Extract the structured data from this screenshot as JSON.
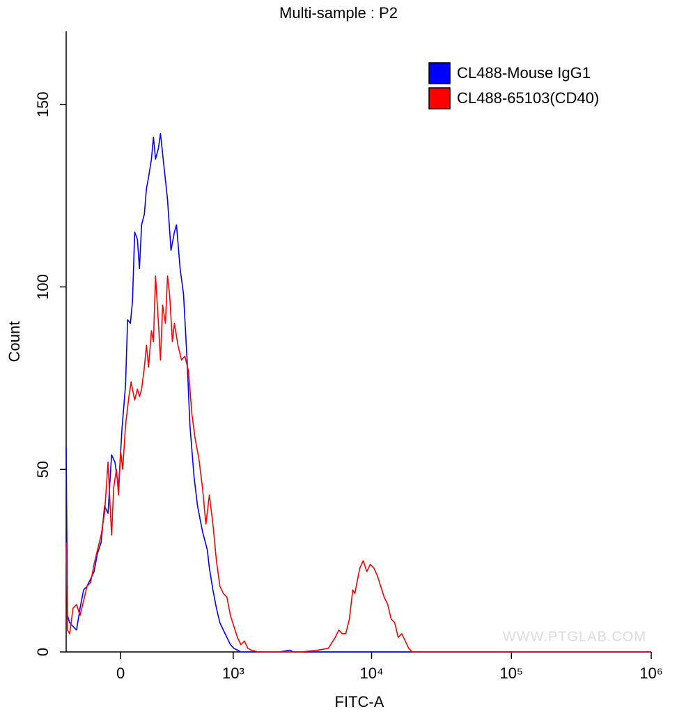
{
  "chart_data": {
    "type": "line",
    "title": "Multi-sample : P2",
    "x_label": "FITC-A",
    "y_label": "Count",
    "x_scale": "biexponential",
    "watermark": "WWW.PTGLAB.COM",
    "legend": "top-right",
    "xlim": [
      -328,
      1000000
    ],
    "xticks": [
      0,
      {
        "value": 1000,
        "label": "10³"
      },
      {
        "value": 10000,
        "label": "10⁴"
      },
      {
        "value": 100000,
        "label": "10⁵"
      },
      {
        "value": 1000000,
        "label": "10⁶"
      }
    ],
    "ylim": [
      0,
      170
    ],
    "yticks": [
      0,
      50,
      100,
      150
    ],
    "series": [
      {
        "name": "CL488-Mouse IgG1",
        "color": "#0000ff",
        "x": [
          -328,
          -318,
          -302,
          -278,
          -254,
          -231,
          -208,
          -187,
          -165,
          -145,
          -125,
          -105,
          -86,
          -67,
          -48,
          -30,
          -11,
          7,
          26,
          37,
          52,
          63,
          75,
          90,
          101,
          113,
          129,
          141,
          153,
          170,
          182,
          195,
          213,
          226,
          249,
          273,
          298,
          323,
          339,
          367,
          395,
          426,
          451,
          490,
          524,
          576,
          630,
          655,
          699,
          744,
          792,
          842,
          896,
          952,
          1011,
          1075,
          1140,
          2177,
          2594,
          2748,
          1000000
        ],
        "values": [
          56,
          10,
          8,
          7,
          6,
          12,
          17,
          18,
          20,
          22,
          27,
          30,
          40,
          38,
          54,
          52,
          45,
          61,
          73,
          91,
          90,
          96,
          115,
          113,
          105,
          117,
          120,
          127,
          130,
          135,
          141,
          135,
          138,
          142,
          133,
          124,
          110,
          115,
          117,
          105,
          98,
          80,
          62,
          48,
          40,
          33,
          28,
          23,
          17,
          12,
          8,
          6,
          4,
          2,
          1,
          0.5,
          0,
          0,
          0.5,
          0,
          0
        ]
      },
      {
        "name": "CL488-65103(CD40)",
        "color": "#ff0000",
        "x": [
          -328,
          -318,
          -302,
          -278,
          -254,
          -231,
          -208,
          -187,
          -165,
          -145,
          -125,
          -105,
          -86,
          -67,
          -56,
          -48,
          -37,
          -22,
          -11,
          0,
          11,
          26,
          44,
          56,
          63,
          75,
          90,
          101,
          113,
          129,
          141,
          153,
          170,
          182,
          195,
          213,
          226,
          240,
          259,
          273,
          288,
          308,
          323,
          350,
          378,
          407,
          438,
          470,
          503,
          538,
          576,
          614,
          655,
          699,
          744,
          792,
          842,
          896,
          952,
          1011,
          1075,
          1140,
          1211,
          1284,
          1363,
          1535,
          3085,
          4122,
          4896,
          5497,
          5824,
          6165,
          6532,
          6934,
          7335,
          7595,
          7952,
          8234,
          8719,
          9236,
          9782,
          10370,
          10975,
          11630,
          12310,
          13046,
          13813,
          14638,
          15504,
          16420,
          17398,
          18425,
          19517,
          1000000
        ],
        "values": [
          30,
          6,
          5,
          12,
          13,
          10,
          14,
          18,
          19,
          24,
          28,
          32,
          38,
          52,
          40,
          32,
          45,
          50,
          43,
          55,
          50,
          62,
          70,
          74,
          72,
          69,
          72,
          70,
          72,
          78,
          84,
          78,
          88,
          85,
          103,
          90,
          80,
          95,
          90,
          103,
          98,
          85,
          90,
          84,
          80,
          81,
          77,
          65,
          58,
          53,
          45,
          35,
          43,
          35,
          25,
          18,
          16,
          15,
          10,
          7,
          4,
          2,
          3,
          1,
          0.5,
          0,
          0,
          0.5,
          1,
          4,
          6,
          5,
          5,
          9,
          17,
          16,
          20,
          23,
          25,
          22,
          24,
          23,
          21,
          18,
          15,
          13,
          9,
          8,
          4,
          5,
          3,
          1,
          0,
          0
        ]
      }
    ]
  }
}
